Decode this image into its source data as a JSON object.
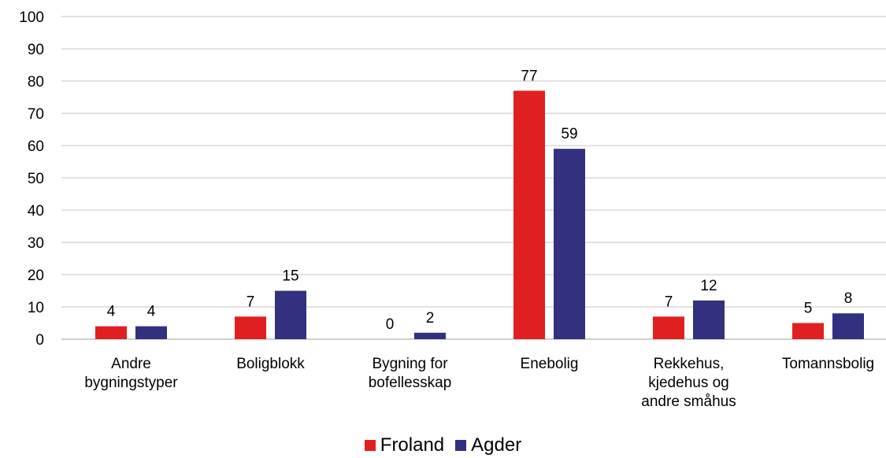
{
  "chart_data": {
    "type": "bar",
    "categories": [
      [
        "Andre",
        "bygningstyper"
      ],
      [
        "Boligblokk"
      ],
      [
        "Bygning for",
        "bofellesskap"
      ],
      [
        "Enebolig"
      ],
      [
        "Rekkehus,",
        "kjedehus og",
        "andre småhus"
      ],
      [
        "Tomannsbolig"
      ]
    ],
    "series": [
      {
        "name": "Froland",
        "color": "#e02020",
        "values": [
          4,
          7,
          0,
          77,
          7,
          5
        ]
      },
      {
        "name": "Agder",
        "color": "#32307f",
        "values": [
          4,
          15,
          2,
          59,
          12,
          8
        ]
      }
    ],
    "yticks": [
      "0",
      "10",
      "20",
      "30",
      "40",
      "50",
      "60",
      "70",
      "80",
      "90",
      "100"
    ],
    "ylim": [
      0,
      100
    ],
    "grid": true,
    "legend_position": "bottom"
  }
}
